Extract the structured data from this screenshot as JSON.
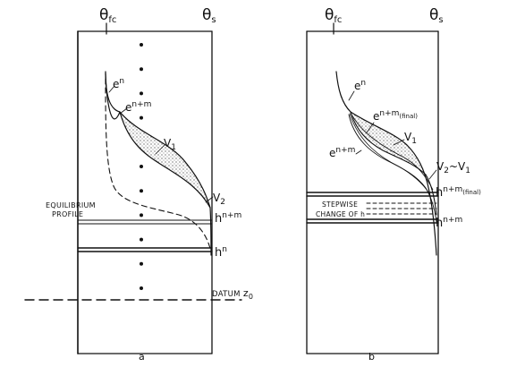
{
  "panels": [
    {
      "id": "a",
      "caption": "a",
      "top_labels": {
        "left_theta": "θ",
        "left_sub": "fc",
        "right_theta": "θ",
        "right_sub": "s"
      },
      "curve_labels": {
        "theta_n_base": "e",
        "theta_n_sup": "n",
        "theta_nm_base": "e",
        "theta_nm_sup": "n+m",
        "v1_base": "V",
        "v1_sub": "1",
        "v2_base": "V",
        "v2_sub": "2"
      },
      "labels": {
        "equilibrium_line1": "EQUILIBRIUM",
        "equilibrium_line2": "PROFILE",
        "hnm_base": "h",
        "hnm_sup": "n+m",
        "hn_base": "h",
        "hn_sup": "n",
        "datum": "DATUM",
        "datum_z": "z",
        "datum_sub": "0"
      },
      "dot_count": 11
    },
    {
      "id": "b",
      "caption": "b",
      "top_labels": {
        "left_theta": "θ",
        "left_sub": "fc",
        "right_theta": "θ",
        "right_sub": "s"
      },
      "curve_labels": {
        "theta_n_base": "e",
        "theta_n_sup": "n",
        "theta_nm_final_base": "e",
        "theta_nm_final_sup": "n+m",
        "theta_nm_final_tag": "(final)",
        "theta_nm_base": "e",
        "theta_nm_sup": "n+m",
        "v1_base": "V",
        "v1_sub": "1",
        "v2v1_base": "V",
        "v2v1_sub": "2",
        "v2v1_tilde": "~V",
        "v2v1_sub2": "1"
      },
      "labels": {
        "hnm_final_base": "h",
        "hnm_final_sup": "n+m",
        "hnm_final_tag": "(final)",
        "stepwise_line1": "STEPWISE",
        "stepwise_line2": "CHANGE OF h",
        "hnm_base": "h",
        "hnm_sup": "n+m"
      }
    }
  ]
}
